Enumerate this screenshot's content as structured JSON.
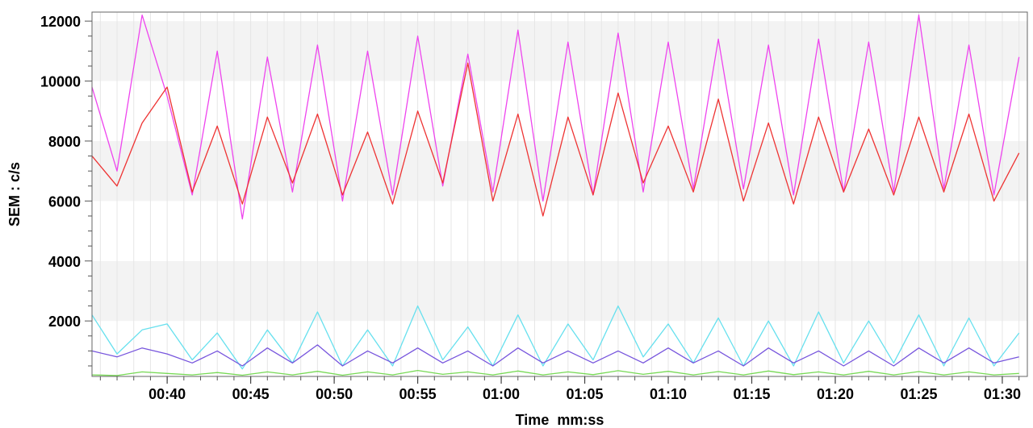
{
  "chart_data": {
    "type": "line",
    "title": "",
    "xlabel": "Time  mm:ss",
    "ylabel": "SEM : c/s",
    "xlim_seconds": [
      35.5,
      91.5
    ],
    "ylim": [
      150,
      12300
    ],
    "x_ticks": [
      {
        "label": "00:40",
        "seconds": 40
      },
      {
        "label": "00:45",
        "seconds": 45
      },
      {
        "label": "00:50",
        "seconds": 50
      },
      {
        "label": "00:55",
        "seconds": 55
      },
      {
        "label": "01:00",
        "seconds": 60
      },
      {
        "label": "01:05",
        "seconds": 65
      },
      {
        "label": "01:10",
        "seconds": 70
      },
      {
        "label": "01:15",
        "seconds": 75
      },
      {
        "label": "01:20",
        "seconds": 80
      },
      {
        "label": "01:25",
        "seconds": 85
      },
      {
        "label": "01:30",
        "seconds": 90
      }
    ],
    "y_ticks": [
      {
        "label": "2000",
        "value": 2000
      },
      {
        "label": "4000",
        "value": 4000
      },
      {
        "label": "6000",
        "value": 6000
      },
      {
        "label": "8000",
        "value": 8000
      },
      {
        "label": "10000",
        "value": 10000
      },
      {
        "label": "12000",
        "value": 12000
      }
    ],
    "grid": true,
    "band_colors": [
      "#ffffff",
      "#f3f3f3"
    ],
    "x_seconds": [
      35.5,
      37,
      38.5,
      40,
      41.5,
      43,
      44.5,
      46,
      47.5,
      49,
      50.5,
      52,
      53.5,
      55,
      56.5,
      58,
      59.5,
      61,
      62.5,
      64,
      65.5,
      67,
      68.5,
      70,
      71.5,
      73,
      74.5,
      76,
      77.5,
      79,
      80.5,
      82,
      83.5,
      85,
      86.5,
      88,
      89.5,
      91
    ],
    "series": [
      {
        "color": "#ee44ee",
        "values": [
          9800,
          7000,
          12200,
          9500,
          6200,
          11000,
          5400,
          10800,
          6300,
          11200,
          6000,
          11000,
          6200,
          11500,
          6500,
          10900,
          6300,
          11700,
          6000,
          11300,
          6200,
          11600,
          6300,
          11300,
          6400,
          11400,
          6400,
          11200,
          6200,
          11400,
          6300,
          11300,
          6300,
          12200,
          6400,
          11200,
          6200,
          10800
        ]
      },
      {
        "color": "#ee3333",
        "values": [
          7500,
          6500,
          8600,
          9800,
          6300,
          8500,
          5900,
          8800,
          6600,
          8900,
          6200,
          8300,
          5900,
          9000,
          6600,
          10600,
          6000,
          8900,
          5500,
          8800,
          6200,
          9600,
          6600,
          8500,
          6300,
          9400,
          6000,
          8600,
          5900,
          8800,
          6300,
          8400,
          6200,
          8800,
          6300,
          8900,
          6000,
          7600
        ]
      },
      {
        "color": "#66e0ee",
        "values": [
          2200,
          900,
          1700,
          1900,
          700,
          1600,
          400,
          1700,
          600,
          2300,
          500,
          1700,
          500,
          2500,
          700,
          1800,
          500,
          2200,
          500,
          1900,
          700,
          2500,
          800,
          1900,
          600,
          2100,
          500,
          2000,
          500,
          2300,
          600,
          2000,
          600,
          2200,
          500,
          2100,
          500,
          1600
        ]
      },
      {
        "color": "#7755dd",
        "values": [
          1000,
          800,
          1100,
          900,
          600,
          1000,
          500,
          1100,
          600,
          1200,
          500,
          1000,
          600,
          1100,
          600,
          1000,
          500,
          1100,
          600,
          1000,
          600,
          1000,
          600,
          1100,
          600,
          1000,
          500,
          1100,
          600,
          1000,
          500,
          1000,
          500,
          1100,
          600,
          1100,
          600,
          800
        ]
      },
      {
        "color": "#77d955",
        "values": [
          200,
          180,
          300,
          250,
          200,
          280,
          190,
          300,
          200,
          320,
          190,
          300,
          200,
          350,
          220,
          300,
          200,
          330,
          200,
          300,
          210,
          340,
          220,
          320,
          200,
          310,
          200,
          330,
          210,
          300,
          200,
          320,
          200,
          310,
          200,
          300,
          200,
          250
        ]
      }
    ]
  }
}
